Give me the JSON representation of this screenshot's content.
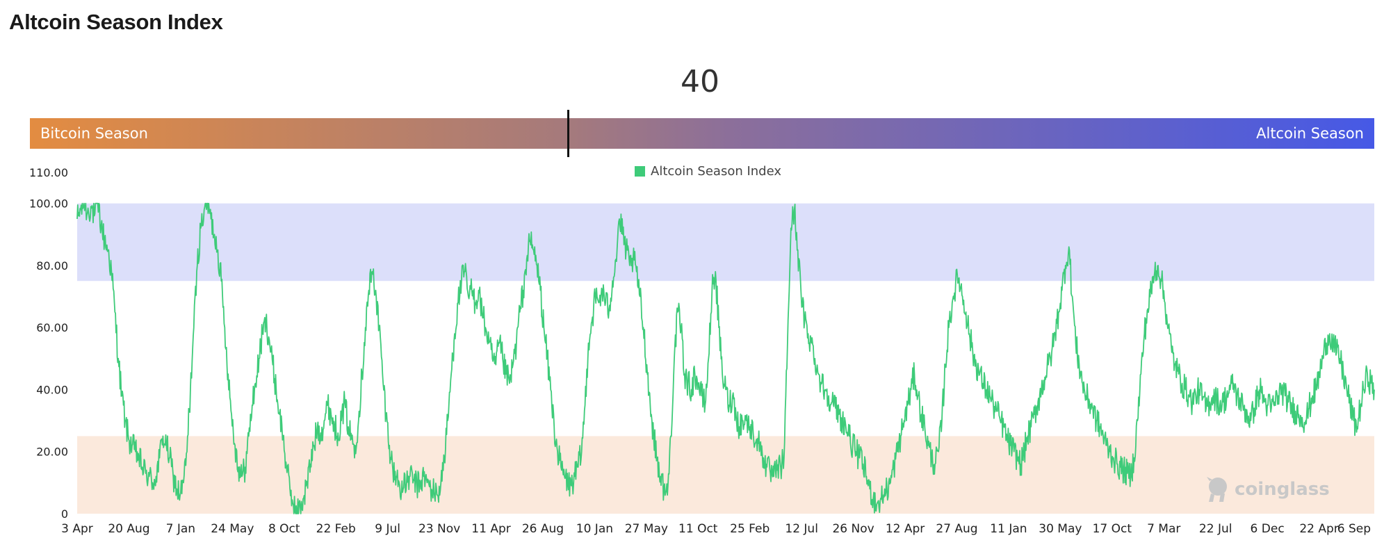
{
  "header": {
    "title": "Altcoin Season Index"
  },
  "gauge": {
    "value": "40",
    "value_num": 40,
    "left_label": "Bitcoin Season",
    "right_label": "Altcoin Season"
  },
  "watermark": "coinglass",
  "colors": {
    "line": "#3ecb79",
    "altcoin_zone": "#dcdffa",
    "bitcoin_zone": "#fbe9dc",
    "gradient_start": "#e38c41",
    "gradient_end": "#4659e6"
  },
  "chart_data": {
    "type": "line",
    "legend": [
      "Altcoin Season Index"
    ],
    "ylim": [
      0,
      110
    ],
    "yticks": [
      "0",
      "20.00",
      "40.00",
      "60.00",
      "80.00",
      "100.00",
      "110.00"
    ],
    "bands": [
      {
        "from": 75,
        "to": 100,
        "color": "#dcdffa"
      },
      {
        "from": 0,
        "to": 25,
        "color": "#fbe9dc"
      }
    ],
    "grid": false,
    "xtick_labels": [
      "3 Apr",
      "20 Aug",
      "7 Jan",
      "24 May",
      "8 Oct",
      "22 Feb",
      "9 Jul",
      "23 Nov",
      "11 Apr",
      "26 Aug",
      "10 Jan",
      "27 May",
      "11 Oct",
      "25 Feb",
      "12 Jul",
      "26 Nov",
      "12 Apr",
      "27 Aug",
      "11 Jan",
      "30 May",
      "17 Oct",
      "7 Mar",
      "22 Jul",
      "6 Dec",
      "22 Apr",
      "6 Sep"
    ],
    "series": [
      {
        "name": "Altcoin Season Index",
        "color": "#3ecb79",
        "values": [
          95,
          98,
          100,
          97,
          99,
          96,
          100,
          93,
          88,
          85,
          78,
          65,
          50,
          38,
          30,
          24,
          22,
          20,
          18,
          15,
          13,
          12,
          10,
          12,
          18,
          25,
          22,
          18,
          12,
          8,
          6,
          10,
          20,
          40,
          60,
          80,
          92,
          98,
          100,
          95,
          90,
          85,
          75,
          60,
          45,
          32,
          22,
          15,
          12,
          15,
          25,
          35,
          42,
          50,
          58,
          62,
          56,
          48,
          40,
          32,
          25,
          15,
          8,
          3,
          0,
          2,
          5,
          10,
          16,
          22,
          28,
          26,
          30,
          35,
          32,
          28,
          26,
          30,
          36,
          28,
          24,
          22,
          30,
          45,
          60,
          72,
          78,
          72,
          60,
          45,
          32,
          22,
          14,
          12,
          9,
          8,
          10,
          12,
          11,
          9,
          10,
          12,
          10,
          8,
          7,
          6,
          10,
          18,
          30,
          45,
          58,
          68,
          75,
          78,
          70,
          72,
          68,
          72,
          65,
          60,
          55,
          50,
          48,
          55,
          50,
          45,
          42,
          48,
          55,
          65,
          72,
          82,
          88,
          85,
          80,
          72,
          60,
          50,
          40,
          28,
          20,
          15,
          12,
          10,
          9,
          12,
          15,
          20,
          35,
          55,
          62,
          70,
          68,
          72,
          68,
          66,
          75,
          82,
          95,
          90,
          85,
          80,
          82,
          78,
          70,
          60,
          48,
          35,
          25,
          18,
          12,
          8,
          6,
          25,
          50,
          65,
          60,
          45,
          42,
          40,
          45,
          42,
          38,
          35,
          50,
          72,
          78,
          60,
          45,
          40,
          35,
          38,
          32,
          28,
          30,
          30,
          28,
          26,
          24,
          22,
          18,
          15,
          13,
          12,
          14,
          15,
          18,
          55,
          92,
          98,
          85,
          70,
          62,
          58,
          55,
          50,
          45,
          42,
          40,
          38,
          36,
          34,
          32,
          30,
          28,
          25,
          22,
          20,
          18,
          16,
          12,
          8,
          5,
          3,
          4,
          6,
          8,
          10,
          15,
          20,
          25,
          30,
          35,
          40,
          45,
          38,
          32,
          28,
          22,
          18,
          16,
          20,
          30,
          48,
          60,
          68,
          74,
          76,
          70,
          65,
          58,
          52,
          48,
          45,
          42,
          40,
          38,
          35,
          33,
          30,
          28,
          24,
          22,
          20,
          18,
          16,
          20,
          25,
          28,
          32,
          36,
          40,
          44,
          48,
          52,
          58,
          65,
          72,
          80,
          86,
          70,
          55,
          48,
          42,
          38,
          36,
          34,
          30,
          28,
          25,
          22,
          20,
          18,
          16,
          15,
          14,
          13,
          12,
          18,
          30,
          45,
          58,
          66,
          72,
          78,
          80,
          75,
          68,
          60,
          52,
          48,
          45,
          42,
          40,
          38,
          36,
          38,
          40,
          37,
          34,
          36,
          38,
          37,
          35,
          36,
          38,
          40,
          42,
          38,
          36,
          34,
          32,
          30,
          34,
          38,
          40,
          36,
          35,
          34,
          36,
          38,
          40,
          38,
          36,
          34,
          33,
          32,
          31,
          30,
          34,
          38,
          40,
          45,
          50,
          55,
          58,
          55,
          52,
          50,
          45,
          40,
          35,
          30,
          28,
          35,
          40,
          45,
          42,
          40
        ]
      }
    ]
  }
}
